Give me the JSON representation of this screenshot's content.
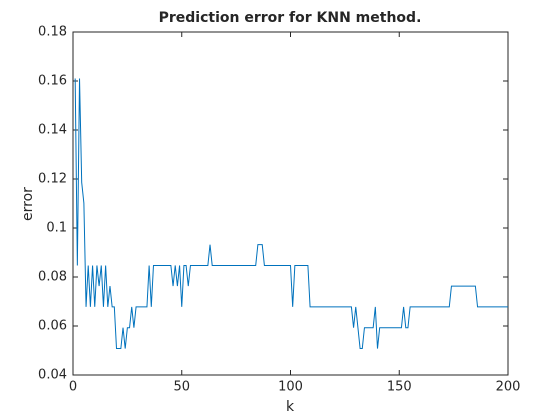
{
  "chart_data": {
    "type": "line",
    "title": "Prediction error for KNN method.",
    "x_label": "k",
    "y_label": "error",
    "x": [
      1,
      2,
      3,
      4,
      5,
      6,
      7,
      8,
      9,
      10,
      11,
      12,
      13,
      14,
      15,
      16,
      17,
      18,
      19,
      20,
      21,
      22,
      23,
      24,
      25,
      26,
      27,
      28,
      29,
      30,
      31,
      32,
      33,
      34,
      35,
      36,
      37,
      38,
      39,
      40,
      41,
      42,
      43,
      44,
      45,
      46,
      47,
      48,
      49,
      50,
      51,
      52,
      53,
      54,
      55,
      56,
      57,
      58,
      59,
      60,
      61,
      62,
      63,
      64,
      65,
      66,
      67,
      68,
      69,
      70,
      71,
      72,
      73,
      74,
      75,
      76,
      77,
      78,
      79,
      80,
      81,
      82,
      83,
      84,
      85,
      86,
      87,
      88,
      89,
      90,
      91,
      92,
      93,
      94,
      95,
      96,
      97,
      98,
      99,
      100,
      101,
      102,
      103,
      104,
      105,
      106,
      107,
      108,
      109,
      110,
      111,
      112,
      113,
      114,
      115,
      116,
      117,
      118,
      119,
      120,
      121,
      122,
      123,
      124,
      125,
      126,
      127,
      128,
      129,
      130,
      131,
      132,
      133,
      134,
      135,
      136,
      137,
      138,
      139,
      140,
      141,
      142,
      143,
      144,
      145,
      146,
      147,
      148,
      149,
      150,
      151,
      152,
      153,
      154,
      155,
      156,
      157,
      158,
      159,
      160,
      161,
      162,
      163,
      164,
      165,
      166,
      167,
      168,
      169,
      170,
      171,
      172,
      173,
      174,
      175,
      176,
      177,
      178,
      179,
      180,
      181,
      182,
      183,
      184,
      185,
      186,
      187,
      188,
      189,
      190,
      191,
      192,
      193,
      194,
      195,
      196,
      197,
      198,
      199,
      200
    ],
    "series": [
      {
        "name": "error",
        "color": "#0072bd",
        "values": [
          0.161,
          0.0847,
          0.161,
          0.1186,
          0.1102,
          0.0678,
          0.0847,
          0.0678,
          0.0847,
          0.0678,
          0.0847,
          0.0763,
          0.0847,
          0.0678,
          0.0847,
          0.0678,
          0.0763,
          0.0678,
          0.0678,
          0.0508,
          0.0508,
          0.0508,
          0.0593,
          0.0508,
          0.0593,
          0.0593,
          0.0678,
          0.0593,
          0.0678,
          0.0678,
          0.0678,
          0.0678,
          0.0678,
          0.0678,
          0.0847,
          0.0678,
          0.0847,
          0.0847,
          0.0847,
          0.0847,
          0.0847,
          0.0847,
          0.0847,
          0.0847,
          0.0847,
          0.0763,
          0.0847,
          0.0763,
          0.0847,
          0.0678,
          0.0847,
          0.0847,
          0.0763,
          0.0847,
          0.0847,
          0.0847,
          0.0847,
          0.0847,
          0.0847,
          0.0847,
          0.0847,
          0.0847,
          0.0932,
          0.0847,
          0.0847,
          0.0847,
          0.0847,
          0.0847,
          0.0847,
          0.0847,
          0.0847,
          0.0847,
          0.0847,
          0.0847,
          0.0847,
          0.0847,
          0.0847,
          0.0847,
          0.0847,
          0.0847,
          0.0847,
          0.0847,
          0.0847,
          0.0847,
          0.0932,
          0.0932,
          0.0932,
          0.0847,
          0.0847,
          0.0847,
          0.0847,
          0.0847,
          0.0847,
          0.0847,
          0.0847,
          0.0847,
          0.0847,
          0.0847,
          0.0847,
          0.0847,
          0.0678,
          0.0847,
          0.0847,
          0.0847,
          0.0847,
          0.0847,
          0.0847,
          0.0847,
          0.0678,
          0.0678,
          0.0678,
          0.0678,
          0.0678,
          0.0678,
          0.0678,
          0.0678,
          0.0678,
          0.0678,
          0.0678,
          0.0678,
          0.0678,
          0.0678,
          0.0678,
          0.0678,
          0.0678,
          0.0678,
          0.0678,
          0.0678,
          0.0593,
          0.0678,
          0.0593,
          0.0508,
          0.0508,
          0.0593,
          0.0593,
          0.0593,
          0.0593,
          0.0593,
          0.0678,
          0.0508,
          0.0593,
          0.0593,
          0.0593,
          0.0593,
          0.0593,
          0.0593,
          0.0593,
          0.0593,
          0.0593,
          0.0593,
          0.0593,
          0.0678,
          0.0593,
          0.0593,
          0.0678,
          0.0678,
          0.0678,
          0.0678,
          0.0678,
          0.0678,
          0.0678,
          0.0678,
          0.0678,
          0.0678,
          0.0678,
          0.0678,
          0.0678,
          0.0678,
          0.0678,
          0.0678,
          0.0678,
          0.0678,
          0.0678,
          0.0763,
          0.0763,
          0.0763,
          0.0763,
          0.0763,
          0.0763,
          0.0763,
          0.0763,
          0.0763,
          0.0763,
          0.0763,
          0.0763,
          0.0678,
          0.0678,
          0.0678,
          0.0678,
          0.0678,
          0.0678,
          0.0678,
          0.0678,
          0.0678,
          0.0678,
          0.0678,
          0.0678,
          0.0678,
          0.0678,
          0.0678
        ]
      }
    ],
    "xlim": [
      0,
      200
    ],
    "xticks": [
      0,
      50,
      100,
      150,
      200
    ],
    "ylim": [
      0.04,
      0.18
    ],
    "yticks": [
      0.04,
      0.06,
      0.08,
      0.1,
      0.12,
      0.14,
      0.16,
      0.18
    ],
    "grid": false
  }
}
